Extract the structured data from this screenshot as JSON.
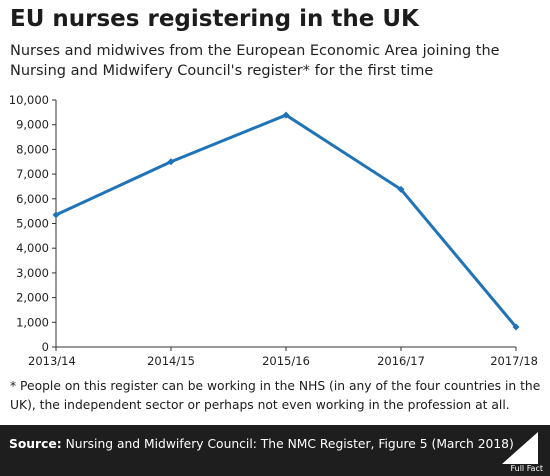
{
  "title": "EU nurses registering in the UK",
  "subtitle": "Nurses and midwives from the European Economic Area joining the Nursing and Midwifery Council's register* for the first time",
  "footnote": "* People on this register can be working in the NHS (in any of the four countries in the UK), the independent sector or perhaps not even working in the profession at all.",
  "source_label": "Source:",
  "source_text": "Nursing and Midwifery Council: The NMC Register, Figure 5 (March 2018)",
  "logo_text": "Full Fact",
  "chart_data": {
    "type": "line",
    "categories": [
      "2013/14",
      "2014/15",
      "2015/16",
      "2016/17",
      "2017/18"
    ],
    "series": [
      {
        "values": [
          5350,
          7500,
          9390,
          6380,
          810
        ]
      }
    ],
    "ylim": [
      0,
      10000
    ],
    "yticks": [
      0,
      1000,
      2000,
      3000,
      4000,
      5000,
      6000,
      7000,
      8000,
      9000,
      10000
    ],
    "ytick_labels": [
      "0",
      "1,000",
      "2,000",
      "3,000",
      "4,000",
      "5,000",
      "6,000",
      "7,000",
      "8,000",
      "9,000",
      "10,000"
    ],
    "grid": false,
    "line_color": "#1f73b7"
  }
}
